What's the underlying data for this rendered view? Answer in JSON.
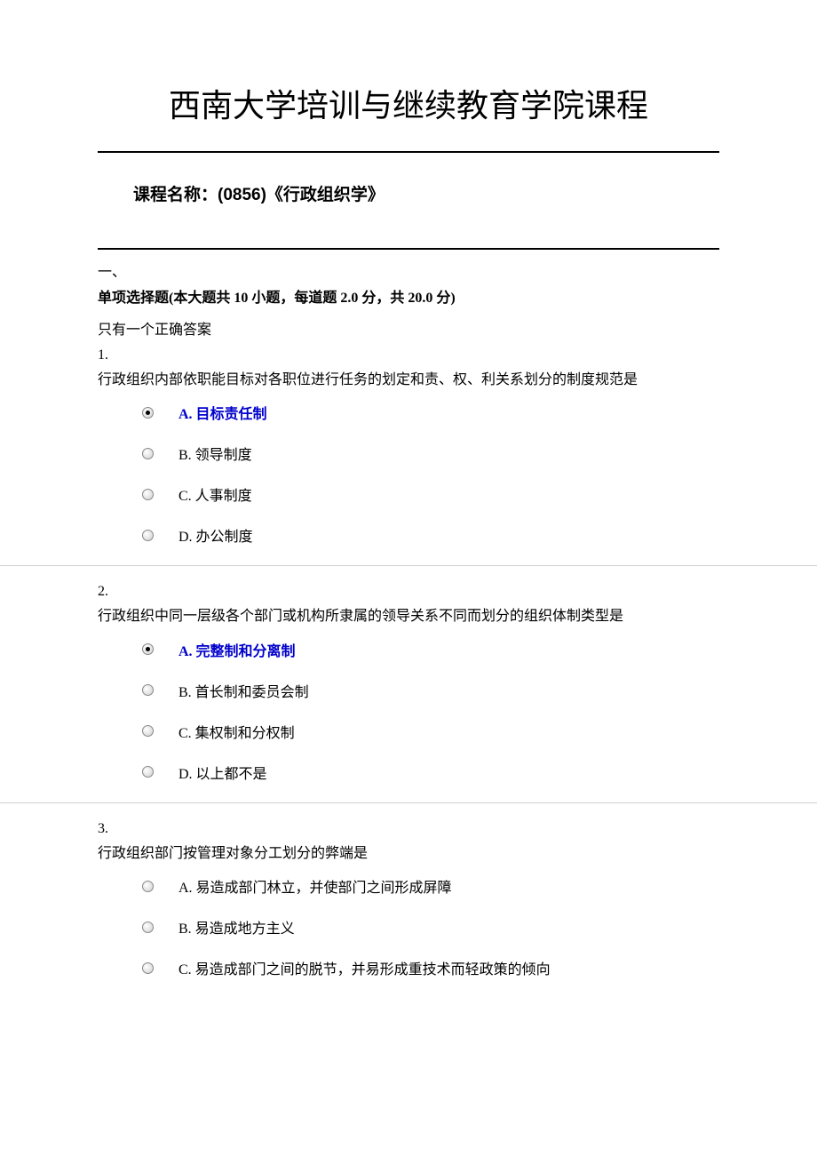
{
  "title": "西南大学培训与继续教育学院课程",
  "course_label": "课程名称：(0856)《行政组织学》",
  "section": {
    "num": "一、",
    "title": "单项选择题(本大题共 10 小题，每道题 2.0 分，共 20.0 分)",
    "note": "只有一个正确答案"
  },
  "questions": [
    {
      "num": "1.",
      "text": "行政组织内部依职能目标对各职位进行任务的划定和责、权、利关系划分的制度规范是",
      "options": [
        {
          "label": "A. 目标责任制",
          "selected": true,
          "highlighted": true
        },
        {
          "label": "B. 领导制度",
          "selected": false,
          "highlighted": false
        },
        {
          "label": "C. 人事制度",
          "selected": false,
          "highlighted": false
        },
        {
          "label": "D. 办公制度",
          "selected": false,
          "highlighted": false
        }
      ],
      "has_divider": true
    },
    {
      "num": "2.",
      "text": "行政组织中同一层级各个部门或机构所隶属的领导关系不同而划分的组织体制类型是",
      "options": [
        {
          "label": "A. 完整制和分离制",
          "selected": true,
          "highlighted": true
        },
        {
          "label": "B. 首长制和委员会制",
          "selected": false,
          "highlighted": false
        },
        {
          "label": "C. 集权制和分权制",
          "selected": false,
          "highlighted": false
        },
        {
          "label": "D. 以上都不是",
          "selected": false,
          "highlighted": false
        }
      ],
      "has_divider": true
    },
    {
      "num": "3.",
      "text": "行政组织部门按管理对象分工划分的弊端是",
      "options": [
        {
          "label": "A. 易造成部门林立，并使部门之间形成屏障",
          "selected": false,
          "highlighted": false
        },
        {
          "label": "B. 易造成地方主义",
          "selected": false,
          "highlighted": false
        },
        {
          "label": "C. 易造成部门之间的脱节，并易形成重技术而轻政策的倾向",
          "selected": false,
          "highlighted": false
        }
      ],
      "has_divider": false
    }
  ],
  "colors": {
    "text": "#000000",
    "highlight": "#0000cc",
    "divider": "#d0d0d0",
    "background": "#ffffff"
  }
}
